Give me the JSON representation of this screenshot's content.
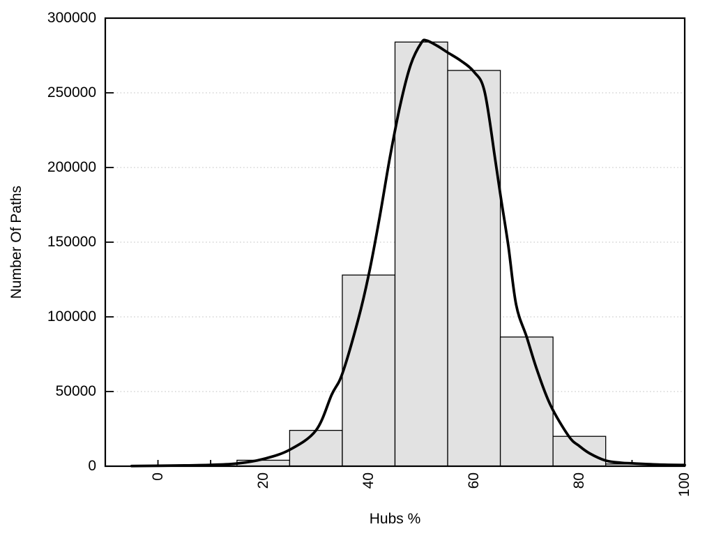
{
  "figure": {
    "background": "#ffffff",
    "frame_color": "#000000"
  },
  "chart_data": {
    "type": "bar",
    "subtype": "histogram-with-fit-curve",
    "title": "",
    "xlabel": "Hubs %",
    "ylabel": "Number Of Paths",
    "xlim": [
      -10,
      100
    ],
    "ylim": [
      0,
      300000
    ],
    "x_tick_values": [
      0,
      10,
      20,
      30,
      40,
      50,
      60,
      70,
      80,
      90,
      100
    ],
    "x_tick_labeled": [
      0,
      20,
      40,
      60,
      80,
      100
    ],
    "y_ticks": [
      0,
      50000,
      100000,
      150000,
      200000,
      250000,
      300000
    ],
    "grid": {
      "horizontal_dotted_at": [
        50000,
        100000,
        150000,
        200000,
        250000
      ],
      "color": "#c9c9c9"
    },
    "histogram": {
      "bin_edges": [
        15,
        25,
        35,
        45,
        55,
        65,
        75,
        85,
        95
      ],
      "counts": [
        4000,
        24000,
        128000,
        284000,
        265000,
        86500,
        20000,
        1500
      ],
      "fill": "#e2e2e2",
      "stroke": "#000000"
    },
    "fit_curve": {
      "name": "smooth-fit-curve",
      "color": "#000000",
      "points": [
        [
          -5,
          100
        ],
        [
          0,
          300
        ],
        [
          5,
          500
        ],
        [
          10,
          900
        ],
        [
          15,
          1800
        ],
        [
          20,
          4800
        ],
        [
          25,
          11000
        ],
        [
          30,
          24000
        ],
        [
          33,
          48000
        ],
        [
          35,
          62000
        ],
        [
          38,
          98000
        ],
        [
          40,
          128000
        ],
        [
          42,
          165000
        ],
        [
          44,
          206000
        ],
        [
          46,
          242000
        ],
        [
          48,
          269000
        ],
        [
          50,
          283500
        ],
        [
          51,
          285000
        ],
        [
          53,
          281500
        ],
        [
          55,
          277000
        ],
        [
          57.5,
          271500
        ],
        [
          60,
          264000
        ],
        [
          62,
          251000
        ],
        [
          64,
          206000
        ],
        [
          65,
          182000
        ],
        [
          66.5,
          148000
        ],
        [
          68,
          108000
        ],
        [
          70,
          86500
        ],
        [
          72,
          64000
        ],
        [
          74.5,
          41000
        ],
        [
          78,
          20000
        ],
        [
          80,
          13500
        ],
        [
          82,
          8500
        ],
        [
          85,
          3800
        ],
        [
          88,
          2300
        ],
        [
          90,
          1900
        ],
        [
          95,
          1100
        ],
        [
          100,
          800
        ]
      ]
    }
  }
}
